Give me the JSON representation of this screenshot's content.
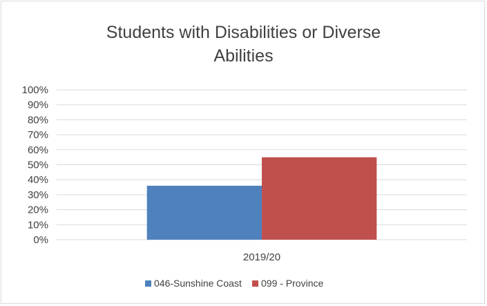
{
  "chart_data": {
    "type": "bar",
    "title_lines": [
      "Students with Disabilities or Diverse",
      "Abilities"
    ],
    "categories": [
      "2019/20"
    ],
    "series": [
      {
        "name": "046-Sunshine Coast",
        "values": [
          0.36
        ],
        "color": "#4f81bd"
      },
      {
        "name": "099 - Province",
        "values": [
          0.55
        ],
        "color": "#c0504d"
      }
    ],
    "ylim": [
      0,
      1
    ],
    "yticks": [
      0,
      0.1,
      0.2,
      0.3,
      0.4,
      0.5,
      0.6,
      0.7,
      0.8,
      0.9,
      1.0
    ],
    "ytick_labels": [
      "0%",
      "10%",
      "20%",
      "30%",
      "40%",
      "50%",
      "60%",
      "70%",
      "80%",
      "90%",
      "100%"
    ],
    "grid": true,
    "legend_position": "bottom",
    "gridline_color": "#d9d9d9"
  }
}
